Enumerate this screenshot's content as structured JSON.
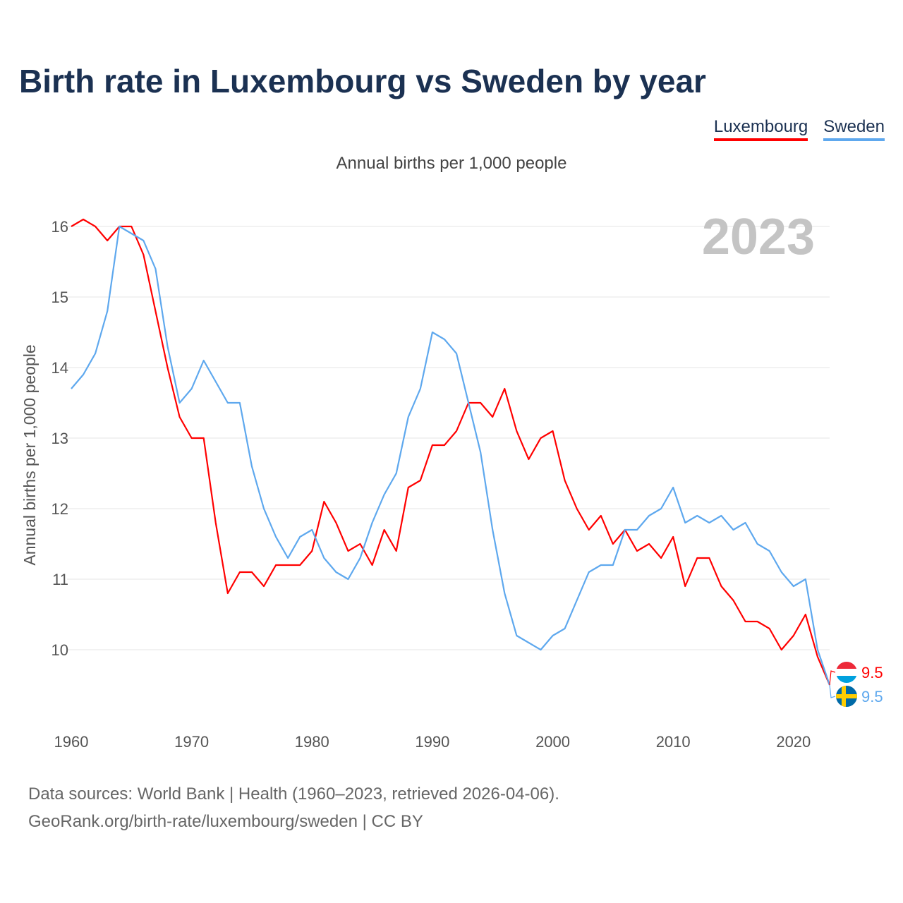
{
  "title": "Birth rate in Luxembourg vs Sweden by year",
  "footer": {
    "line1": "Data sources: World Bank | Health (1960–2023, retrieved 2026-04-06).",
    "line2": "GeoRank.org/birth-rate/luxembourg/sweden | CC BY"
  },
  "chart_data": {
    "type": "line",
    "title": "Birth rate in Luxembourg vs Sweden by year",
    "subtitle": "Annual births per 1,000 people",
    "xlabel": "",
    "ylabel": "Annual births per 1,000 people",
    "year_label": "2023",
    "xlim": [
      1960,
      2023
    ],
    "ylim": [
      9.0,
      16.3
    ],
    "x_ticks": [
      1960,
      1970,
      1980,
      1990,
      2000,
      2010,
      2020
    ],
    "y_ticks": [
      10,
      11,
      12,
      13,
      14,
      15,
      16
    ],
    "grid": true,
    "legend_position": "top-right",
    "x": [
      1960,
      1961,
      1962,
      1963,
      1964,
      1965,
      1966,
      1967,
      1968,
      1969,
      1970,
      1971,
      1972,
      1973,
      1974,
      1975,
      1976,
      1977,
      1978,
      1979,
      1980,
      1981,
      1982,
      1983,
      1984,
      1985,
      1986,
      1987,
      1988,
      1989,
      1990,
      1991,
      1992,
      1993,
      1994,
      1995,
      1996,
      1997,
      1998,
      1999,
      2000,
      2001,
      2002,
      2003,
      2004,
      2005,
      2006,
      2007,
      2008,
      2009,
      2010,
      2011,
      2012,
      2013,
      2014,
      2015,
      2016,
      2017,
      2018,
      2019,
      2020,
      2021,
      2022,
      2023
    ],
    "series": [
      {
        "name": "Luxembourg",
        "color": "#ff0000",
        "end_label": "9.5",
        "values": [
          16.0,
          16.1,
          16.0,
          15.8,
          16.0,
          16.0,
          15.6,
          14.8,
          14.0,
          13.3,
          13.0,
          13.0,
          11.8,
          10.8,
          11.1,
          11.1,
          10.9,
          11.2,
          11.2,
          11.2,
          11.4,
          12.1,
          11.8,
          11.4,
          11.5,
          11.2,
          11.7,
          11.4,
          12.3,
          12.4,
          12.9,
          12.9,
          13.1,
          13.5,
          13.5,
          13.3,
          13.7,
          13.1,
          12.7,
          13.0,
          13.1,
          12.4,
          12.0,
          11.7,
          11.9,
          11.5,
          11.7,
          11.4,
          11.5,
          11.3,
          11.6,
          10.9,
          11.3,
          11.3,
          10.9,
          10.7,
          10.4,
          10.4,
          10.3,
          10.0,
          10.2,
          10.5,
          9.9,
          9.5
        ]
      },
      {
        "name": "Sweden",
        "color": "#5ea8ee",
        "end_label": "9.5",
        "values": [
          13.7,
          13.9,
          14.2,
          14.8,
          16.0,
          15.9,
          15.8,
          15.4,
          14.3,
          13.5,
          13.7,
          14.1,
          13.8,
          13.5,
          13.5,
          12.6,
          12.0,
          11.6,
          11.3,
          11.6,
          11.7,
          11.3,
          11.1,
          11.0,
          11.3,
          11.8,
          12.2,
          12.5,
          13.3,
          13.7,
          14.5,
          14.4,
          14.2,
          13.5,
          12.8,
          11.7,
          10.8,
          10.2,
          10.1,
          10.0,
          10.2,
          10.3,
          10.7,
          11.1,
          11.2,
          11.2,
          11.7,
          11.7,
          11.9,
          12.0,
          12.3,
          11.8,
          11.9,
          11.8,
          11.9,
          11.7,
          11.8,
          11.5,
          11.4,
          11.1,
          10.9,
          11.0,
          10.0,
          9.5
        ]
      }
    ]
  }
}
